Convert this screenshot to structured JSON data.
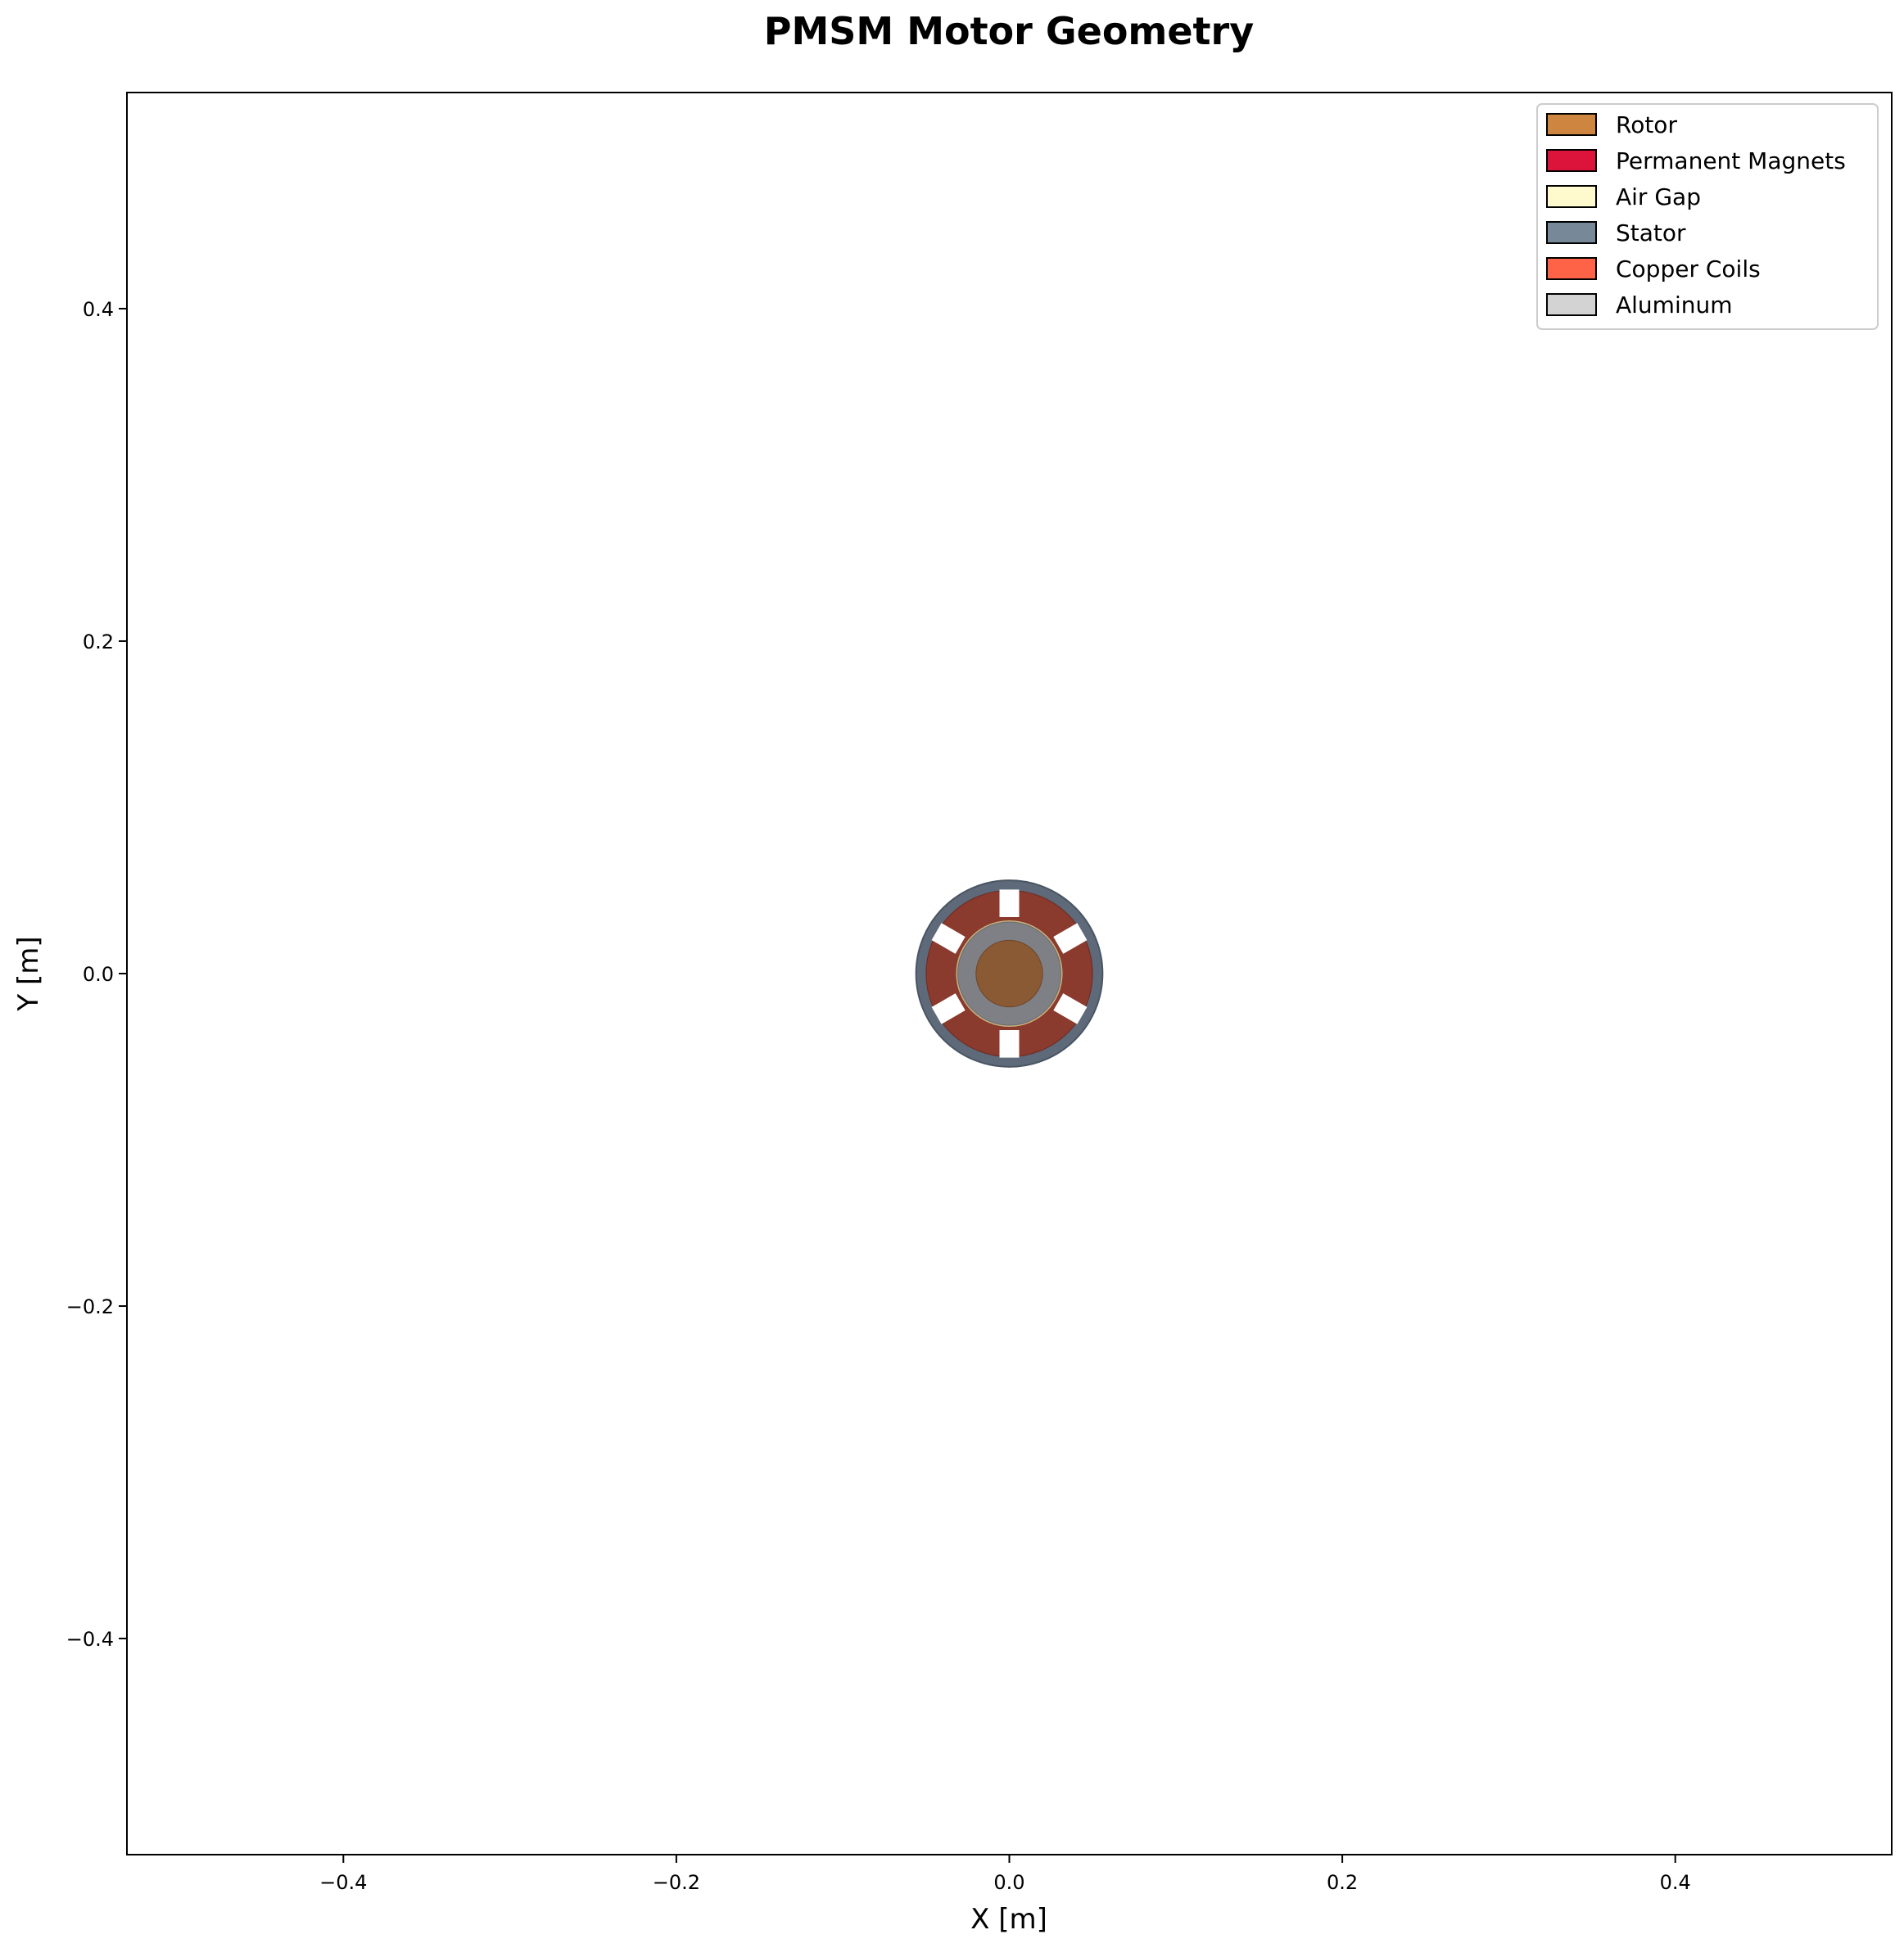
{
  "chart_data": {
    "type": "diagram",
    "title": "PMSM Motor Geometry",
    "xlabel": "X [m]",
    "ylabel": "Y [m]",
    "xlim": [
      -0.53,
      0.53
    ],
    "ylim": [
      -0.53,
      0.53
    ],
    "xticks": [
      -0.4,
      -0.2,
      0.0,
      0.2,
      0.4
    ],
    "yticks": [
      -0.4,
      -0.2,
      0.0,
      0.2,
      0.4
    ],
    "xtick_labels": [
      "−0.4",
      "−0.2",
      "0.0",
      "0.2",
      "0.4"
    ],
    "ytick_labels": [
      "−0.4",
      "−0.2",
      "0.0",
      "0.2",
      "0.4"
    ],
    "grid": false,
    "legend_position": "top-right",
    "legend": [
      {
        "name": "Rotor",
        "color": "#cd853f"
      },
      {
        "name": "Permanent Magnets",
        "color": "#dc143c"
      },
      {
        "name": "Air Gap",
        "color": "#fffacd"
      },
      {
        "name": "Stator",
        "color": "#778899"
      },
      {
        "name": "Copper Coils",
        "color": "#ff6347"
      },
      {
        "name": "Aluminum",
        "color": "#d3d3d3"
      }
    ],
    "geometry": {
      "center": [
        0.0,
        0.0
      ],
      "rotor_radius": 0.02,
      "magnet_ring_outer_radius": 0.031,
      "air_gap_outer_radius": 0.032,
      "coil_outer_radius": 0.05,
      "stator_outer_radius": 0.056,
      "slot_count": 6
    }
  },
  "colors": {
    "rotor_fill": "#8a5a34",
    "magnet_ring": "#7f7f86",
    "air_gap_ring": "#c8b27c",
    "coil_fill": "#8b3a2e",
    "stator_ring": "#5e6a79",
    "slot_fill": "#ffffff"
  }
}
